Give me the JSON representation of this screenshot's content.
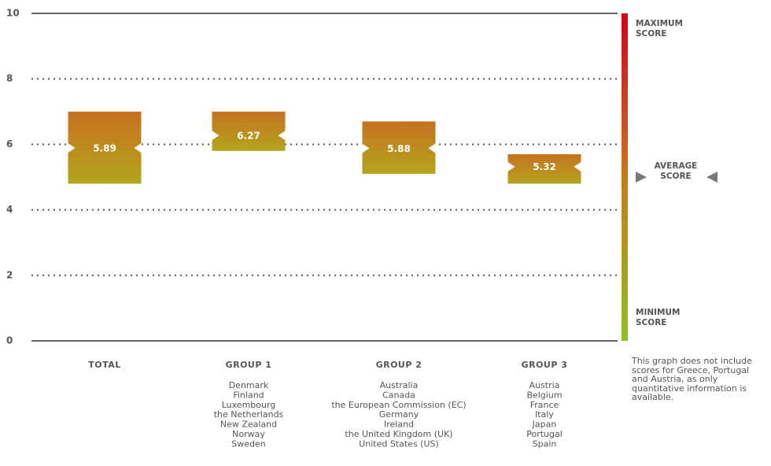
{
  "chart_data": {
    "type": "range",
    "categories": [
      "TOTAL",
      "GROUP 1",
      "GROUP 2",
      "GROUP 3"
    ],
    "members": [
      [],
      [
        "Denmark",
        "Finland",
        "Luxembourg",
        "the Netherlands",
        "New Zealand",
        "Norway",
        "Sweden"
      ],
      [
        "Australia",
        "Canada",
        "the European Commission (EC)",
        "Germany",
        "Ireland",
        "the United Kingdom (UK)",
        "United States (US)"
      ],
      [
        "Austria",
        "Belgium",
        "France",
        "Italy",
        "Japan",
        "Portugal",
        "Spain"
      ]
    ],
    "series": [
      {
        "name": "MINIMUM SCORE",
        "values": [
          4.8,
          5.8,
          5.1,
          4.8
        ]
      },
      {
        "name": "MAXIMUM SCORE",
        "values": [
          7.0,
          7.0,
          6.7,
          5.7
        ]
      },
      {
        "name": "AVERAGE SCORE",
        "values": [
          5.89,
          6.27,
          5.88,
          5.32
        ]
      }
    ],
    "box_gradient": [
      "#c8711f",
      "#b3a51e"
    ],
    "scale_gradient": [
      "#d0021b",
      "#c8781e",
      "#8dc21f"
    ],
    "ylim": [
      0,
      10
    ],
    "yticks": [
      0,
      2,
      4,
      6,
      8,
      10
    ],
    "grid": true,
    "note": "This graph does not include scores for Greece, Portugal and Austria, as only quantitative information is available."
  }
}
